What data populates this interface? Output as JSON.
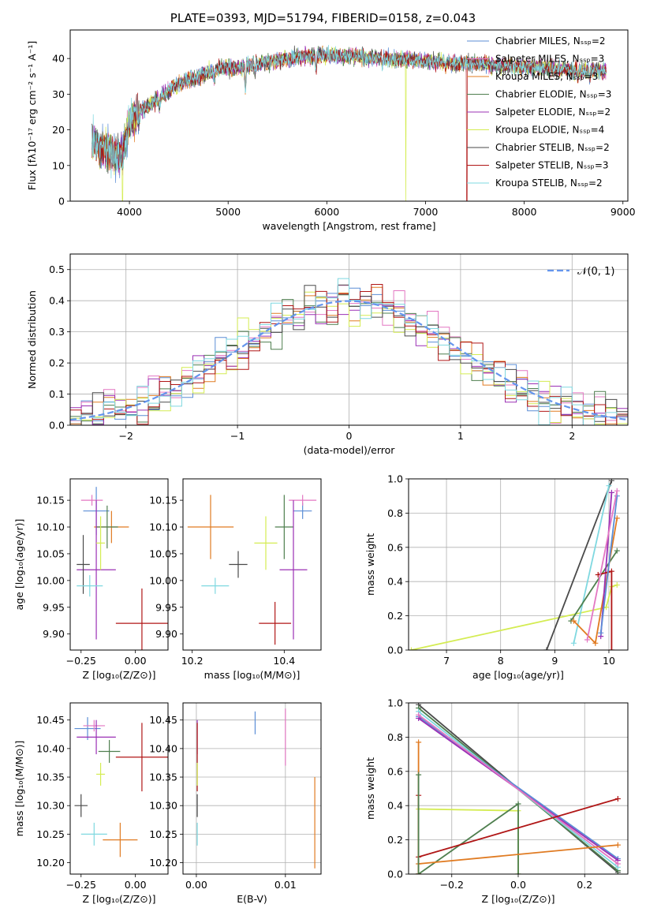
{
  "title": "PLATE=0393, MJD=51794, FIBERID=0158, z=0.043",
  "colors": {
    "Chabrier MILES": "#5b8ed6",
    "Salpeter MILES": "#e377c2",
    "Kroupa MILES": "#e07b22",
    "Chabrier ELODIE": "#4f7f4f",
    "Salpeter ELODIE": "#9b30b5",
    "Kroupa ELODIE": "#d4ec52",
    "Chabrier STELIB": "#4a4a4a",
    "Salpeter STELIB": "#b01616",
    "Kroupa STELIB": "#7fd8e0"
  },
  "chart_data": [
    {
      "id": "spectrum",
      "type": "line",
      "title": "PLATE=0393, MJD=51794, FIBERID=0158, z=0.043",
      "xlabel": "wavelength [Angstrom, rest frame]",
      "ylabel": "Flux [fλ10⁻¹⁷ erg cm⁻² s⁻¹ A⁻¹]",
      "xlim": [
        3400,
        9050
      ],
      "ylim": [
        0,
        48
      ],
      "xticks": [
        4000,
        5000,
        6000,
        7000,
        8000,
        9000
      ],
      "yticks": [
        0,
        10,
        20,
        30,
        40
      ],
      "legend_position": "top-right",
      "series": [
        {
          "name": "Chabrier MILES, Nₛₛₚ=2"
        },
        {
          "name": "Salpeter MILES, Nₛₛₚ=3"
        },
        {
          "name": "Kroupa MILES, Nₛₛₚ=3"
        },
        {
          "name": "Chabrier ELODIE, Nₛₛₚ=3"
        },
        {
          "name": "Salpeter ELODIE, Nₛₛₚ=2"
        },
        {
          "name": "Kroupa ELODIE, Nₛₛₚ=4"
        },
        {
          "name": "Chabrier STELIB, Nₛₛₚ=2"
        },
        {
          "name": "Salpeter STELIB, Nₛₛₚ=3"
        },
        {
          "name": "Kroupa STELIB, Nₛₛₚ=2"
        }
      ],
      "continuum": {
        "x": [
          3620,
          3700,
          3800,
          3900,
          4000,
          4100,
          4300,
          4500,
          4700,
          4900,
          5100,
          5300,
          5500,
          5700,
          6000,
          6300,
          6600,
          6900,
          7200,
          7500,
          7800,
          8100,
          8400,
          8800
        ],
        "y": [
          17,
          15,
          14,
          12,
          22,
          25,
          29,
          33,
          35,
          37,
          37.5,
          38.5,
          39.5,
          40.5,
          41,
          40.5,
          40,
          39.5,
          39,
          38.5,
          38,
          37.5,
          37,
          36.5
        ]
      },
      "dropouts": [
        {
          "series": "Kroupa ELODIE",
          "x": 3930
        },
        {
          "series": "Kroupa ELODIE",
          "x": 6800
        },
        {
          "series": "Salpeter STELIB",
          "x": 7420
        }
      ]
    },
    {
      "id": "residuals",
      "type": "histogram",
      "xlabel": "(data-model)/error",
      "ylabel": "Normed distribution",
      "xlim": [
        -2.5,
        2.5
      ],
      "ylim": [
        0,
        0.55
      ],
      "xticks": [
        -2,
        -1,
        0,
        1,
        2
      ],
      "yticks": [
        0.0,
        0.1,
        0.2,
        0.3,
        0.4,
        0.5
      ],
      "grid": true,
      "legend": "𝒩(0, 1)",
      "legend_position": "top-right",
      "bin_width": 0.1,
      "reference_curve": "normal(0,1) pdf, dashed"
    },
    {
      "id": "Z-age",
      "type": "errorbar",
      "xlabel": "Z [log₁₀(Z/Z⊙)]",
      "ylabel": "age  [log₁₀(age/yr)]",
      "xlim": [
        -0.3,
        0.15
      ],
      "ylim": [
        9.87,
        10.19
      ],
      "xticks": [
        -0.25,
        0.0
      ],
      "yticks": [
        9.9,
        9.95,
        10.0,
        10.05,
        10.1,
        10.15
      ],
      "points": [
        {
          "series": "Chabrier MILES",
          "x": -0.18,
          "xerr": 0.06,
          "y": 10.13,
          "yerr": 0.045
        },
        {
          "series": "Salpeter MILES",
          "x": -0.2,
          "xerr": 0.05,
          "y": 10.15,
          "yerr": 0.01
        },
        {
          "series": "Kroupa MILES",
          "x": -0.11,
          "xerr": 0.08,
          "y": 10.1,
          "yerr": 0.03
        },
        {
          "series": "Chabrier ELODIE",
          "x": -0.13,
          "xerr": 0.05,
          "y": 10.1,
          "yerr": 0.04
        },
        {
          "series": "Salpeter ELODIE",
          "x": -0.18,
          "xerr": 0.09,
          "y": 10.02,
          "yerr": 0.13
        },
        {
          "series": "Kroupa ELODIE",
          "x": -0.16,
          "xerr": 0.02,
          "y": 10.07,
          "yerr": 0.05
        },
        {
          "series": "Chabrier STELIB",
          "x": -0.24,
          "xerr": 0.03,
          "y": 10.03,
          "yerr": 0.055
        },
        {
          "series": "Salpeter STELIB",
          "x": 0.03,
          "xerr": 0.12,
          "y": 9.92,
          "yerr": 0.065
        },
        {
          "series": "Kroupa STELIB",
          "x": -0.21,
          "xerr": 0.06,
          "y": 9.99,
          "yerr": 0.02
        }
      ]
    },
    {
      "id": "mass-age",
      "type": "errorbar",
      "xlabel": "mass [log₁₀(M/M⊙)]",
      "ylabel": "",
      "xlim": [
        10.18,
        10.48
      ],
      "ylim": [
        9.87,
        10.19
      ],
      "xticks": [
        10.2,
        10.4
      ],
      "yticks": [
        9.9,
        9.95,
        10.0,
        10.05,
        10.1,
        10.15
      ],
      "points": [
        {
          "series": "Chabrier MILES",
          "x": 10.44,
          "xerr": 0.02,
          "y": 10.13,
          "yerr": 0.015
        },
        {
          "series": "Salpeter MILES",
          "x": 10.44,
          "xerr": 0.03,
          "y": 10.15,
          "yerr": 0.01
        },
        {
          "series": "Kroupa MILES",
          "x": 10.24,
          "xerr": 0.05,
          "y": 10.1,
          "yerr": 0.06
        },
        {
          "series": "Chabrier ELODIE",
          "x": 10.4,
          "xerr": 0.02,
          "y": 10.1,
          "yerr": 0.06
        },
        {
          "series": "Salpeter ELODIE",
          "x": 10.42,
          "xerr": 0.03,
          "y": 10.02,
          "yerr": 0.13
        },
        {
          "series": "Kroupa ELODIE",
          "x": 10.36,
          "xerr": 0.025,
          "y": 10.07,
          "yerr": 0.05
        },
        {
          "series": "Chabrier STELIB",
          "x": 10.3,
          "xerr": 0.02,
          "y": 10.03,
          "yerr": 0.025
        },
        {
          "series": "Salpeter STELIB",
          "x": 10.38,
          "xerr": 0.035,
          "y": 9.92,
          "yerr": 0.04
        },
        {
          "series": "Kroupa STELIB",
          "x": 10.25,
          "xerr": 0.03,
          "y": 9.99,
          "yerr": 0.015
        }
      ]
    },
    {
      "id": "weight-age",
      "type": "line",
      "xlabel": "age  [log₁₀(age/yr)]",
      "ylabel": "mass weight",
      "xlim": [
        6.3,
        10.35
      ],
      "ylim": [
        0,
        1.0
      ],
      "xticks": [
        7,
        8,
        9,
        10
      ],
      "yticks": [
        0.0,
        0.2,
        0.4,
        0.6,
        0.8,
        1.0
      ],
      "grid": true,
      "series": [
        {
          "series": "Kroupa ELODIE",
          "x": [
            6.35,
            9.95,
            10.05,
            10.15
          ],
          "y": [
            0.0,
            0.25,
            0.37,
            0.38
          ]
        },
        {
          "series": "Chabrier STELIB",
          "x": [
            8.85,
            10.05
          ],
          "y": [
            0.0,
            0.99
          ]
        },
        {
          "series": "Kroupa STELIB",
          "x": [
            9.35,
            10.0
          ],
          "y": [
            0.04,
            0.96
          ]
        },
        {
          "series": "Chabrier ELODIE",
          "x": [
            9.3,
            10.15
          ],
          "y": [
            0.17,
            0.58
          ]
        },
        {
          "series": "Kroupa MILES",
          "x": [
            9.35,
            9.75,
            10.15
          ],
          "y": [
            0.17,
            0.04,
            0.77
          ]
        },
        {
          "series": "Salpeter ELODIE",
          "x": [
            9.85,
            10.05
          ],
          "y": [
            0.08,
            0.92
          ]
        },
        {
          "series": "Salpeter STELIB",
          "x": [
            9.8,
            10.05,
            10.05
          ],
          "y": [
            0.44,
            0.46,
            0.0
          ]
        },
        {
          "series": "Chabrier MILES",
          "x": [
            9.85,
            10.15
          ],
          "y": [
            0.1,
            0.9
          ]
        },
        {
          "series": "Salpeter MILES",
          "x": [
            9.6,
            10.15
          ],
          "y": [
            0.06,
            0.93
          ]
        }
      ]
    },
    {
      "id": "Z-mass",
      "type": "errorbar",
      "xlabel": "Z [log₁₀(Z/Z⊙)]",
      "ylabel": "mass [log₁₀(M/M⊙)]",
      "xlim": [
        -0.3,
        0.15
      ],
      "ylim": [
        10.18,
        10.48
      ],
      "xticks": [
        -0.25,
        0.0
      ],
      "yticks": [
        10.2,
        10.25,
        10.3,
        10.35,
        10.4,
        10.45
      ],
      "points": [
        {
          "series": "Chabrier MILES",
          "x": -0.22,
          "xerr": 0.06,
          "y": 10.435,
          "yerr": 0.02
        },
        {
          "series": "Salpeter MILES",
          "x": -0.19,
          "xerr": 0.05,
          "y": 10.44,
          "yerr": 0.01
        },
        {
          "series": "Kroupa MILES",
          "x": -0.07,
          "xerr": 0.08,
          "y": 10.24,
          "yerr": 0.03
        },
        {
          "series": "Chabrier ELODIE",
          "x": -0.12,
          "xerr": 0.05,
          "y": 10.395,
          "yerr": 0.02
        },
        {
          "series": "Salpeter ELODIE",
          "x": -0.18,
          "xerr": 0.09,
          "y": 10.42,
          "yerr": 0.03
        },
        {
          "series": "Kroupa ELODIE",
          "x": -0.16,
          "xerr": 0.02,
          "y": 10.355,
          "yerr": 0.02
        },
        {
          "series": "Chabrier STELIB",
          "x": -0.25,
          "xerr": 0.03,
          "y": 10.3,
          "yerr": 0.02
        },
        {
          "series": "Salpeter STELIB",
          "x": 0.03,
          "xerr": 0.12,
          "y": 10.385,
          "yerr": 0.06
        },
        {
          "series": "Kroupa STELIB",
          "x": -0.19,
          "xerr": 0.06,
          "y": 10.25,
          "yerr": 0.02
        }
      ]
    },
    {
      "id": "ebv-mass",
      "type": "errorbar",
      "xlabel": "E(B-V)",
      "ylabel": "",
      "xlim": [
        -0.0015,
        0.014
      ],
      "ylim": [
        10.18,
        10.48
      ],
      "xticks": [
        0.0,
        0.01
      ],
      "yticks": [
        10.2,
        10.25,
        10.3,
        10.35,
        10.4,
        10.45
      ],
      "grid": true,
      "points": [
        {
          "series": "Chabrier MILES",
          "x": 0.0066,
          "xerr": 0,
          "y": 10.445,
          "yerr": 0.02
        },
        {
          "series": "Salpeter MILES",
          "x": 0.01,
          "xerr": 0,
          "y": 10.42,
          "yerr": 0.05
        },
        {
          "series": "Kroupa MILES",
          "x": 0.0133,
          "xerr": 0,
          "y": 10.27,
          "yerr": 0.08
        },
        {
          "series": "Salpeter ELODIE",
          "x": 0.0001,
          "xerr": 0,
          "y": 10.42,
          "yerr": 0.03
        },
        {
          "series": "Salpeter STELIB",
          "x": 0.0001,
          "xerr": 0,
          "y": 10.385,
          "yerr": 0.06
        },
        {
          "series": "Kroupa ELODIE",
          "x": 0.0001,
          "xerr": 0,
          "y": 10.355,
          "yerr": 0.02
        },
        {
          "series": "Chabrier STELIB",
          "x": 0.0001,
          "xerr": 0,
          "y": 10.3,
          "yerr": 0.02
        },
        {
          "series": "Kroupa STELIB",
          "x": 0.0001,
          "xerr": 0,
          "y": 10.25,
          "yerr": 0.02
        }
      ]
    },
    {
      "id": "weight-Z",
      "type": "line",
      "xlabel": "Z [log₁₀(Z/Z⊙)]",
      "ylabel": "mass weight",
      "xlim": [
        -0.33,
        0.33
      ],
      "ylim": [
        0,
        1.0
      ],
      "xticks": [
        -0.2,
        0.0,
        0.2
      ],
      "yticks": [
        0.0,
        0.2,
        0.4,
        0.6,
        0.8,
        1.0
      ],
      "grid": true,
      "series": [
        {
          "series": "Chabrier STELIB",
          "x": [
            -0.3,
            0.3
          ],
          "y": [
            0.99,
            0.01
          ]
        },
        {
          "series": "Chabrier ELODIE",
          "x": [
            -0.3,
            0.3
          ],
          "y": [
            0.97,
            0.02
          ]
        },
        {
          "series": "Kroupa STELIB",
          "x": [
            -0.3,
            0.3
          ],
          "y": [
            0.95,
            0.04
          ]
        },
        {
          "series": "Chabrier MILES",
          "x": [
            -0.3,
            0.3
          ],
          "y": [
            0.92,
            0.09
          ]
        },
        {
          "series": "Salpeter ELODIE",
          "x": [
            -0.3,
            0.3
          ],
          "y": [
            0.91,
            0.08
          ]
        },
        {
          "series": "Salpeter MILES",
          "x": [
            -0.3,
            0.3
          ],
          "y": [
            0.93,
            0.06
          ]
        },
        {
          "series": "Kroupa ELODIE",
          "x": [
            -0.3,
            0.0,
            0.0
          ],
          "y": [
            0.38,
            0.37,
            0.0
          ]
        },
        {
          "series": "Chabrier ELODIE",
          "x": [
            -0.3,
            0.0,
            0.0
          ],
          "y": [
            0.0,
            0.41,
            0.0
          ]
        },
        {
          "series": "Salpeter STELIB",
          "x": [
            -0.3,
            0.3
          ],
          "y": [
            0.1,
            0.44
          ]
        },
        {
          "series": "Salpeter STELIB",
          "x": [
            -0.3,
            -0.3
          ],
          "y": [
            0.46,
            0.0
          ]
        },
        {
          "series": "Kroupa MILES",
          "x": [
            -0.3,
            0.3
          ],
          "y": [
            0.06,
            0.17
          ]
        },
        {
          "series": "Kroupa MILES",
          "x": [
            -0.3,
            -0.3
          ],
          "y": [
            0.77,
            0.0
          ]
        },
        {
          "series": "Chabrier ELODIE",
          "x": [
            -0.3,
            -0.3
          ],
          "y": [
            0.58,
            0.0
          ]
        }
      ]
    }
  ]
}
